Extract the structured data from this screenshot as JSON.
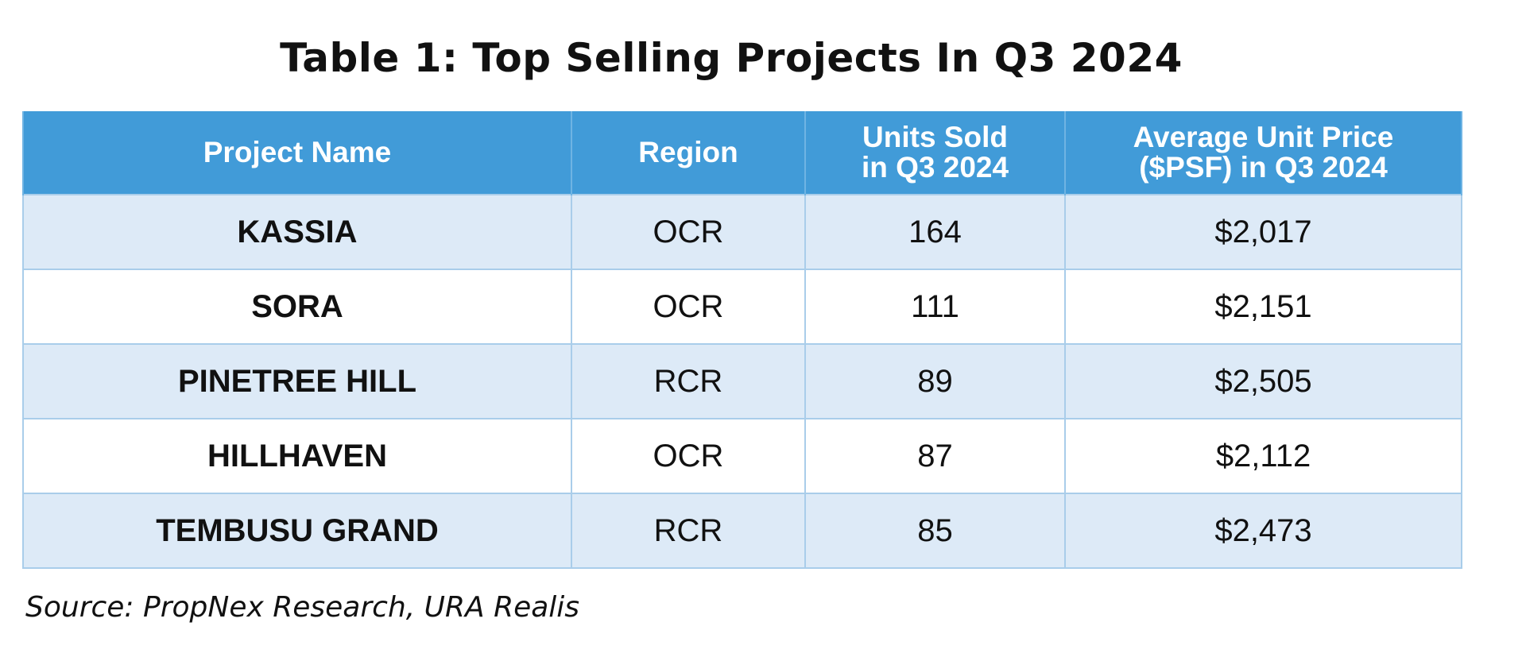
{
  "title": "Table 1: Top Selling Projects In Q3 2024",
  "source": "Source: PropNex Research, URA Realis",
  "colors": {
    "header_bg": "#419bd8",
    "header_text": "#ffffff",
    "row_alt_bg": "#ddeaf7",
    "row_bg": "#ffffff",
    "border": "#a9cdea"
  },
  "chart_data": {
    "type": "table",
    "title": "Table 1: Top Selling Projects In Q3 2024",
    "columns": [
      "Project Name",
      "Region",
      "Units Sold in Q3 2024",
      "Average Unit Price ($PSF) in Q3 2024"
    ],
    "header_lines": [
      [
        "Project Name"
      ],
      [
        "Region"
      ],
      [
        "Units Sold",
        "in Q3 2024"
      ],
      [
        "Average Unit Price",
        "($PSF) in Q3 2024"
      ]
    ],
    "rows": [
      [
        "KASSIA",
        "OCR",
        "164",
        "$2,017"
      ],
      [
        "SORA",
        "OCR",
        "111",
        "$2,151"
      ],
      [
        "PINETREE HILL",
        "RCR",
        "89",
        "$2,505"
      ],
      [
        "HILLHAVEN",
        "OCR",
        "87",
        "$2,112"
      ],
      [
        "TEMBUSU GRAND",
        "RCR",
        "85",
        "$2,473"
      ]
    ]
  }
}
